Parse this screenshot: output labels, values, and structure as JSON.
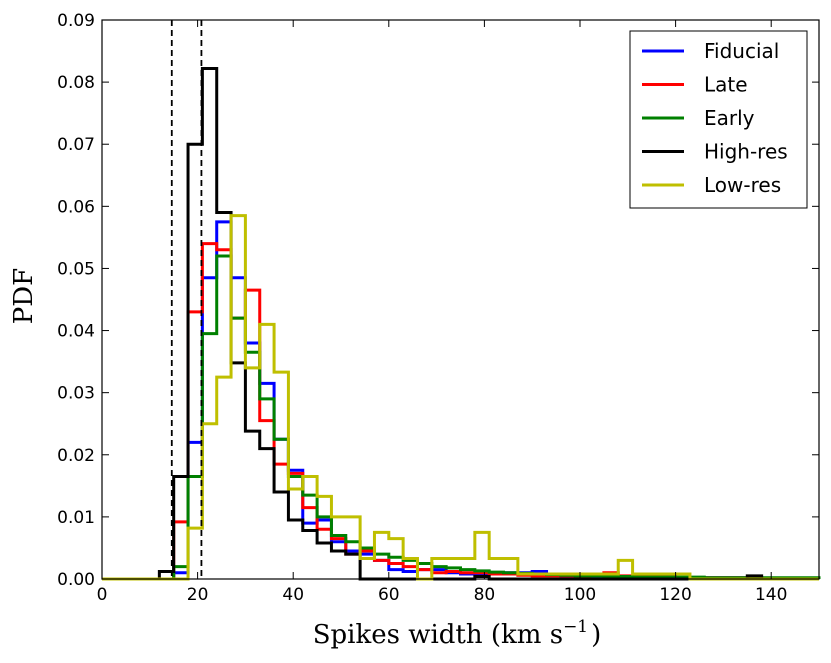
{
  "chart_data": {
    "type": "line",
    "subtype": "step-histogram",
    "xlabel": "Spikes width (km s",
    "xlabel_sup": "−1",
    "xlabel_close": ")",
    "ylabel": "PDF",
    "xlim": [
      0,
      150
    ],
    "ylim": [
      0,
      0.09
    ],
    "xticks": [
      0,
      20,
      40,
      60,
      80,
      100,
      120,
      140
    ],
    "xtick_labels": [
      "0",
      "20",
      "40",
      "60",
      "80",
      "100",
      "120",
      "140"
    ],
    "yticks": [
      0.0,
      0.01,
      0.02,
      0.03,
      0.04,
      0.05,
      0.06,
      0.07,
      0.08,
      0.09
    ],
    "ytick_labels": [
      "0.00",
      "0.01",
      "0.02",
      "0.03",
      "0.04",
      "0.05",
      "0.06",
      "0.07",
      "0.08",
      "0.09"
    ],
    "legend_position": "top-right",
    "reference_lines": [
      {
        "x": 14.6,
        "style": "dashed",
        "color": "#000000"
      },
      {
        "x": 20.8,
        "style": "dashed",
        "color": "#000000"
      }
    ],
    "bin_edges": [
      0,
      3,
      6,
      9,
      12,
      15,
      18,
      21,
      24,
      27,
      30,
      33,
      36,
      39,
      42,
      45,
      48,
      51,
      54,
      57,
      60,
      63,
      66,
      69,
      72,
      75,
      78,
      81,
      84,
      87,
      90,
      93,
      96,
      99,
      102,
      105,
      108,
      111,
      114,
      117,
      120,
      123,
      126,
      129,
      132,
      135,
      138,
      141,
      144,
      147,
      150
    ],
    "series": [
      {
        "name": "Fiducial",
        "color": "#0000ff",
        "values": [
          0,
          0,
          0,
          0,
          0,
          0.001,
          0.022,
          0.0485,
          0.0575,
          0.0485,
          0.038,
          0.0315,
          0.0225,
          0.0175,
          0.009,
          0.0095,
          0.006,
          0.0045,
          0.004,
          0.003,
          0.0015,
          0.0012,
          0.0015,
          0.0015,
          0.001,
          0.0008,
          0.0008,
          0.0008,
          0.001,
          0.001,
          0.0012,
          0.0008,
          0.0005,
          0.0005,
          0.0005,
          0.0005,
          0.0004,
          0.0003,
          0.0003,
          0.0003,
          0.0002,
          0.0002,
          0.0002,
          0.0002,
          0.0002,
          0.0001,
          0.0001,
          0.0001,
          0.0001,
          0.0001
        ]
      },
      {
        "name": "Late",
        "color": "#ff0000",
        "values": [
          0,
          0,
          0,
          0,
          0,
          0.0092,
          0.043,
          0.054,
          0.053,
          0.042,
          0.0465,
          0.0255,
          0.0185,
          0.017,
          0.0115,
          0.008,
          0.0065,
          0.004,
          0.0045,
          0.003,
          0.0025,
          0.002,
          0.0015,
          0.001,
          0.0012,
          0.001,
          0.001,
          0.0008,
          0.0008,
          0.0006,
          0.0005,
          0.0005,
          0.0005,
          0.0004,
          0.0006,
          0.001,
          0.0005,
          0.0004,
          0.0004,
          0.0003,
          0.0002,
          0.0002,
          0.0002,
          0.0002,
          0.0002,
          0.0002,
          0.0001,
          0.0001,
          0.0001,
          0.0001
        ]
      },
      {
        "name": "Early",
        "color": "#008000",
        "values": [
          0,
          0,
          0,
          0,
          0,
          0.002,
          0.0165,
          0.0395,
          0.052,
          0.042,
          0.0365,
          0.029,
          0.0225,
          0.0165,
          0.0135,
          0.01,
          0.007,
          0.006,
          0.005,
          0.004,
          0.0035,
          0.003,
          0.0025,
          0.002,
          0.0018,
          0.0015,
          0.0013,
          0.0011,
          0.001,
          0.0009,
          0.0008,
          0.0007,
          0.0006,
          0.0005,
          0.0005,
          0.0004,
          0.0004,
          0.0003,
          0.0003,
          0.0003,
          0.0003,
          0.0003,
          0.0002,
          0.0002,
          0.0002,
          0.0002,
          0.0002,
          0.0002,
          0.0002,
          0.0002
        ]
      },
      {
        "name": "High-res",
        "color": "#000000",
        "values": [
          0,
          0,
          0,
          0,
          0.0012,
          0.0165,
          0.07,
          0.0822,
          0.059,
          0.0348,
          0.0238,
          0.021,
          0.014,
          0.0095,
          0.0078,
          0.0058,
          0.0045,
          0.004,
          0,
          0,
          0,
          0,
          0,
          0,
          0,
          0,
          0.0004,
          0,
          0,
          0,
          0,
          0,
          0,
          0,
          0,
          0,
          0,
          0,
          0,
          0,
          0,
          0,
          0,
          0,
          0,
          0.0005,
          0,
          0,
          0,
          0
        ]
      },
      {
        "name": "Low-res",
        "color": "#bfbf00",
        "values": [
          0,
          0,
          0,
          0,
          0,
          0,
          0.0082,
          0.025,
          0.0325,
          0.0585,
          0.034,
          0.041,
          0.0333,
          0.0145,
          0.0165,
          0.0133,
          0.01,
          0.01,
          0.0033,
          0.0075,
          0.0065,
          0.0033,
          0,
          0.0033,
          0.0033,
          0.0033,
          0.0075,
          0.0033,
          0.0033,
          0.0008,
          0.0008,
          0.0008,
          0.0008,
          0.0008,
          0.0008,
          0.0008,
          0.003,
          0.0008,
          0.0008,
          0.0008,
          0.0008,
          0,
          0,
          0,
          0,
          0,
          0,
          0,
          0,
          0
        ]
      }
    ]
  }
}
